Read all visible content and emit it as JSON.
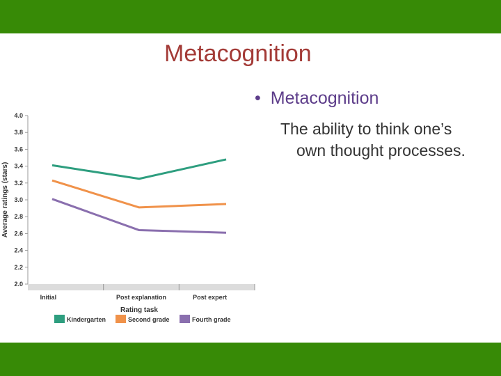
{
  "slide": {
    "title": "Metacognition",
    "bullet": "Metacognition",
    "bullet_marker": "•",
    "definition": "The ability to think one’s own thought processes.",
    "band_color": "#378a06",
    "title_color": "#a33a36",
    "bullet_color": "#5d3d8a"
  },
  "chart_data": {
    "type": "line",
    "title": "",
    "xlabel": "Rating task",
    "ylabel": "Average ratings (stars)",
    "categories": [
      "Initial",
      "Post explanation",
      "Post expert"
    ],
    "ylim": [
      2.0,
      4.0
    ],
    "yticks": [
      "4.0",
      "3.8",
      "3.6",
      "3.4",
      "3.2",
      "3.0",
      "2.8",
      "2.6",
      "2.4",
      "2.2",
      "2.0"
    ],
    "grid": false,
    "legend_position": "bottom",
    "series": [
      {
        "name": "Kindergarten",
        "values": [
          3.41,
          3.25,
          3.48
        ],
        "color": "#2e9e7f"
      },
      {
        "name": "Second grade",
        "values": [
          3.23,
          2.91,
          2.95
        ],
        "color": "#f0924a"
      },
      {
        "name": "Fourth grade",
        "values": [
          3.01,
          2.64,
          2.61
        ],
        "color": "#8a6fae"
      }
    ]
  }
}
